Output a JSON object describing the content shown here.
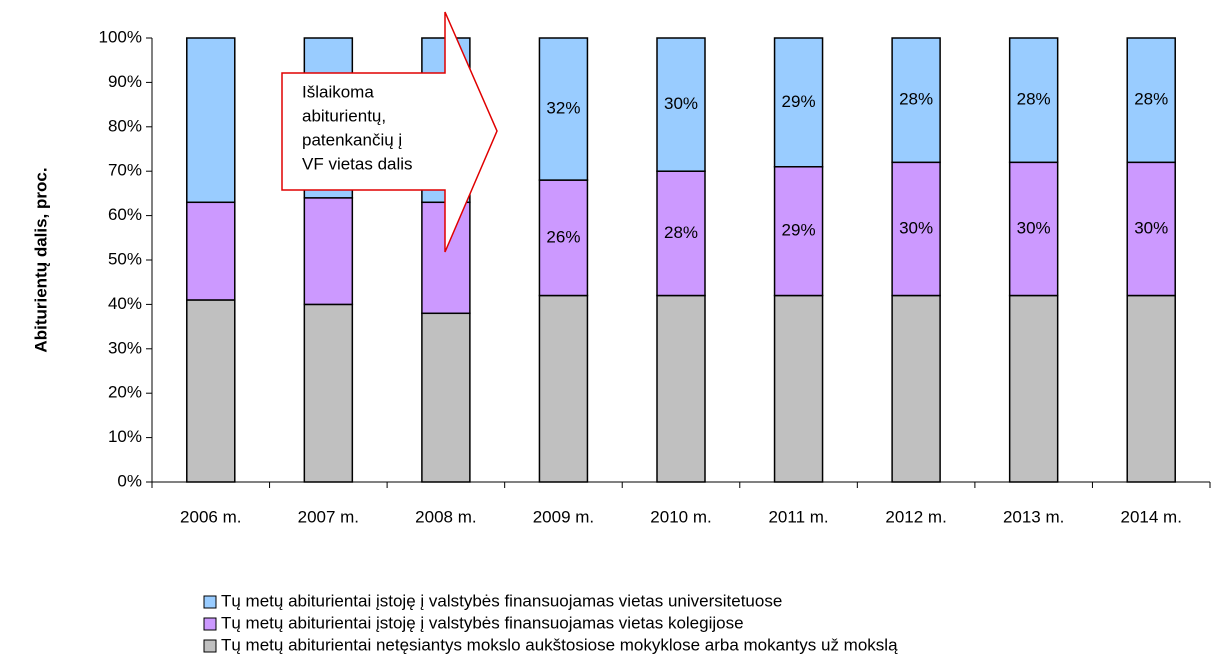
{
  "chart_data": {
    "type": "stacked_bar",
    "y_label": "Abiturientų dalis, proc.",
    "categories": [
      "2006 m.",
      "2007 m.",
      "2008 m.",
      "2009 m.",
      "2010 m.",
      "2011 m.",
      "2012 m.",
      "2013 m.",
      "2014 m."
    ],
    "series": [
      {
        "name": "Tų metų abiturientai netęsiantys mokslo aukštosiose mokyklose arba mokantys už mokslą",
        "color": "#c0c0c0",
        "values": [
          41,
          40,
          38,
          42,
          42,
          42,
          42,
          42,
          42
        ]
      },
      {
        "name": "Tų metų abiturientai įstoję į valstybės finansuojamas vietas kolegijose",
        "color": "#cc99ff",
        "values": [
          22,
          24,
          25,
          26,
          28,
          29,
          30,
          30,
          30
        ],
        "value_labels": [
          null,
          null,
          null,
          "26%",
          "28%",
          "29%",
          "30%",
          "30%",
          "30%"
        ]
      },
      {
        "name": "Tų metų abiturientai įstoję į valstybės finansuojamas vietas universitetuose",
        "color": "#99ccff",
        "values": [
          37,
          36,
          37,
          32,
          30,
          29,
          28,
          28,
          28
        ],
        "value_labels": [
          null,
          null,
          null,
          "32%",
          "30%",
          "29%",
          "28%",
          "28%",
          "28%"
        ]
      }
    ],
    "ylim": [
      0,
      100
    ],
    "yticks": [
      {
        "value": 0,
        "label": "0%"
      },
      {
        "value": 10,
        "label": "10%"
      },
      {
        "value": 20,
        "label": "20%"
      },
      {
        "value": 30,
        "label": "30%"
      },
      {
        "value": 40,
        "label": "40%"
      },
      {
        "value": 50,
        "label": "50%"
      },
      {
        "value": 60,
        "label": "60%"
      },
      {
        "value": 70,
        "label": "70%"
      },
      {
        "value": 80,
        "label": "80%"
      },
      {
        "value": 90,
        "label": "90%"
      },
      {
        "value": 100,
        "label": "100%"
      }
    ],
    "annotation": [
      "Išlaikoma",
      "abiturientų,",
      "patenkančių į",
      "VF vietas dalis"
    ]
  }
}
